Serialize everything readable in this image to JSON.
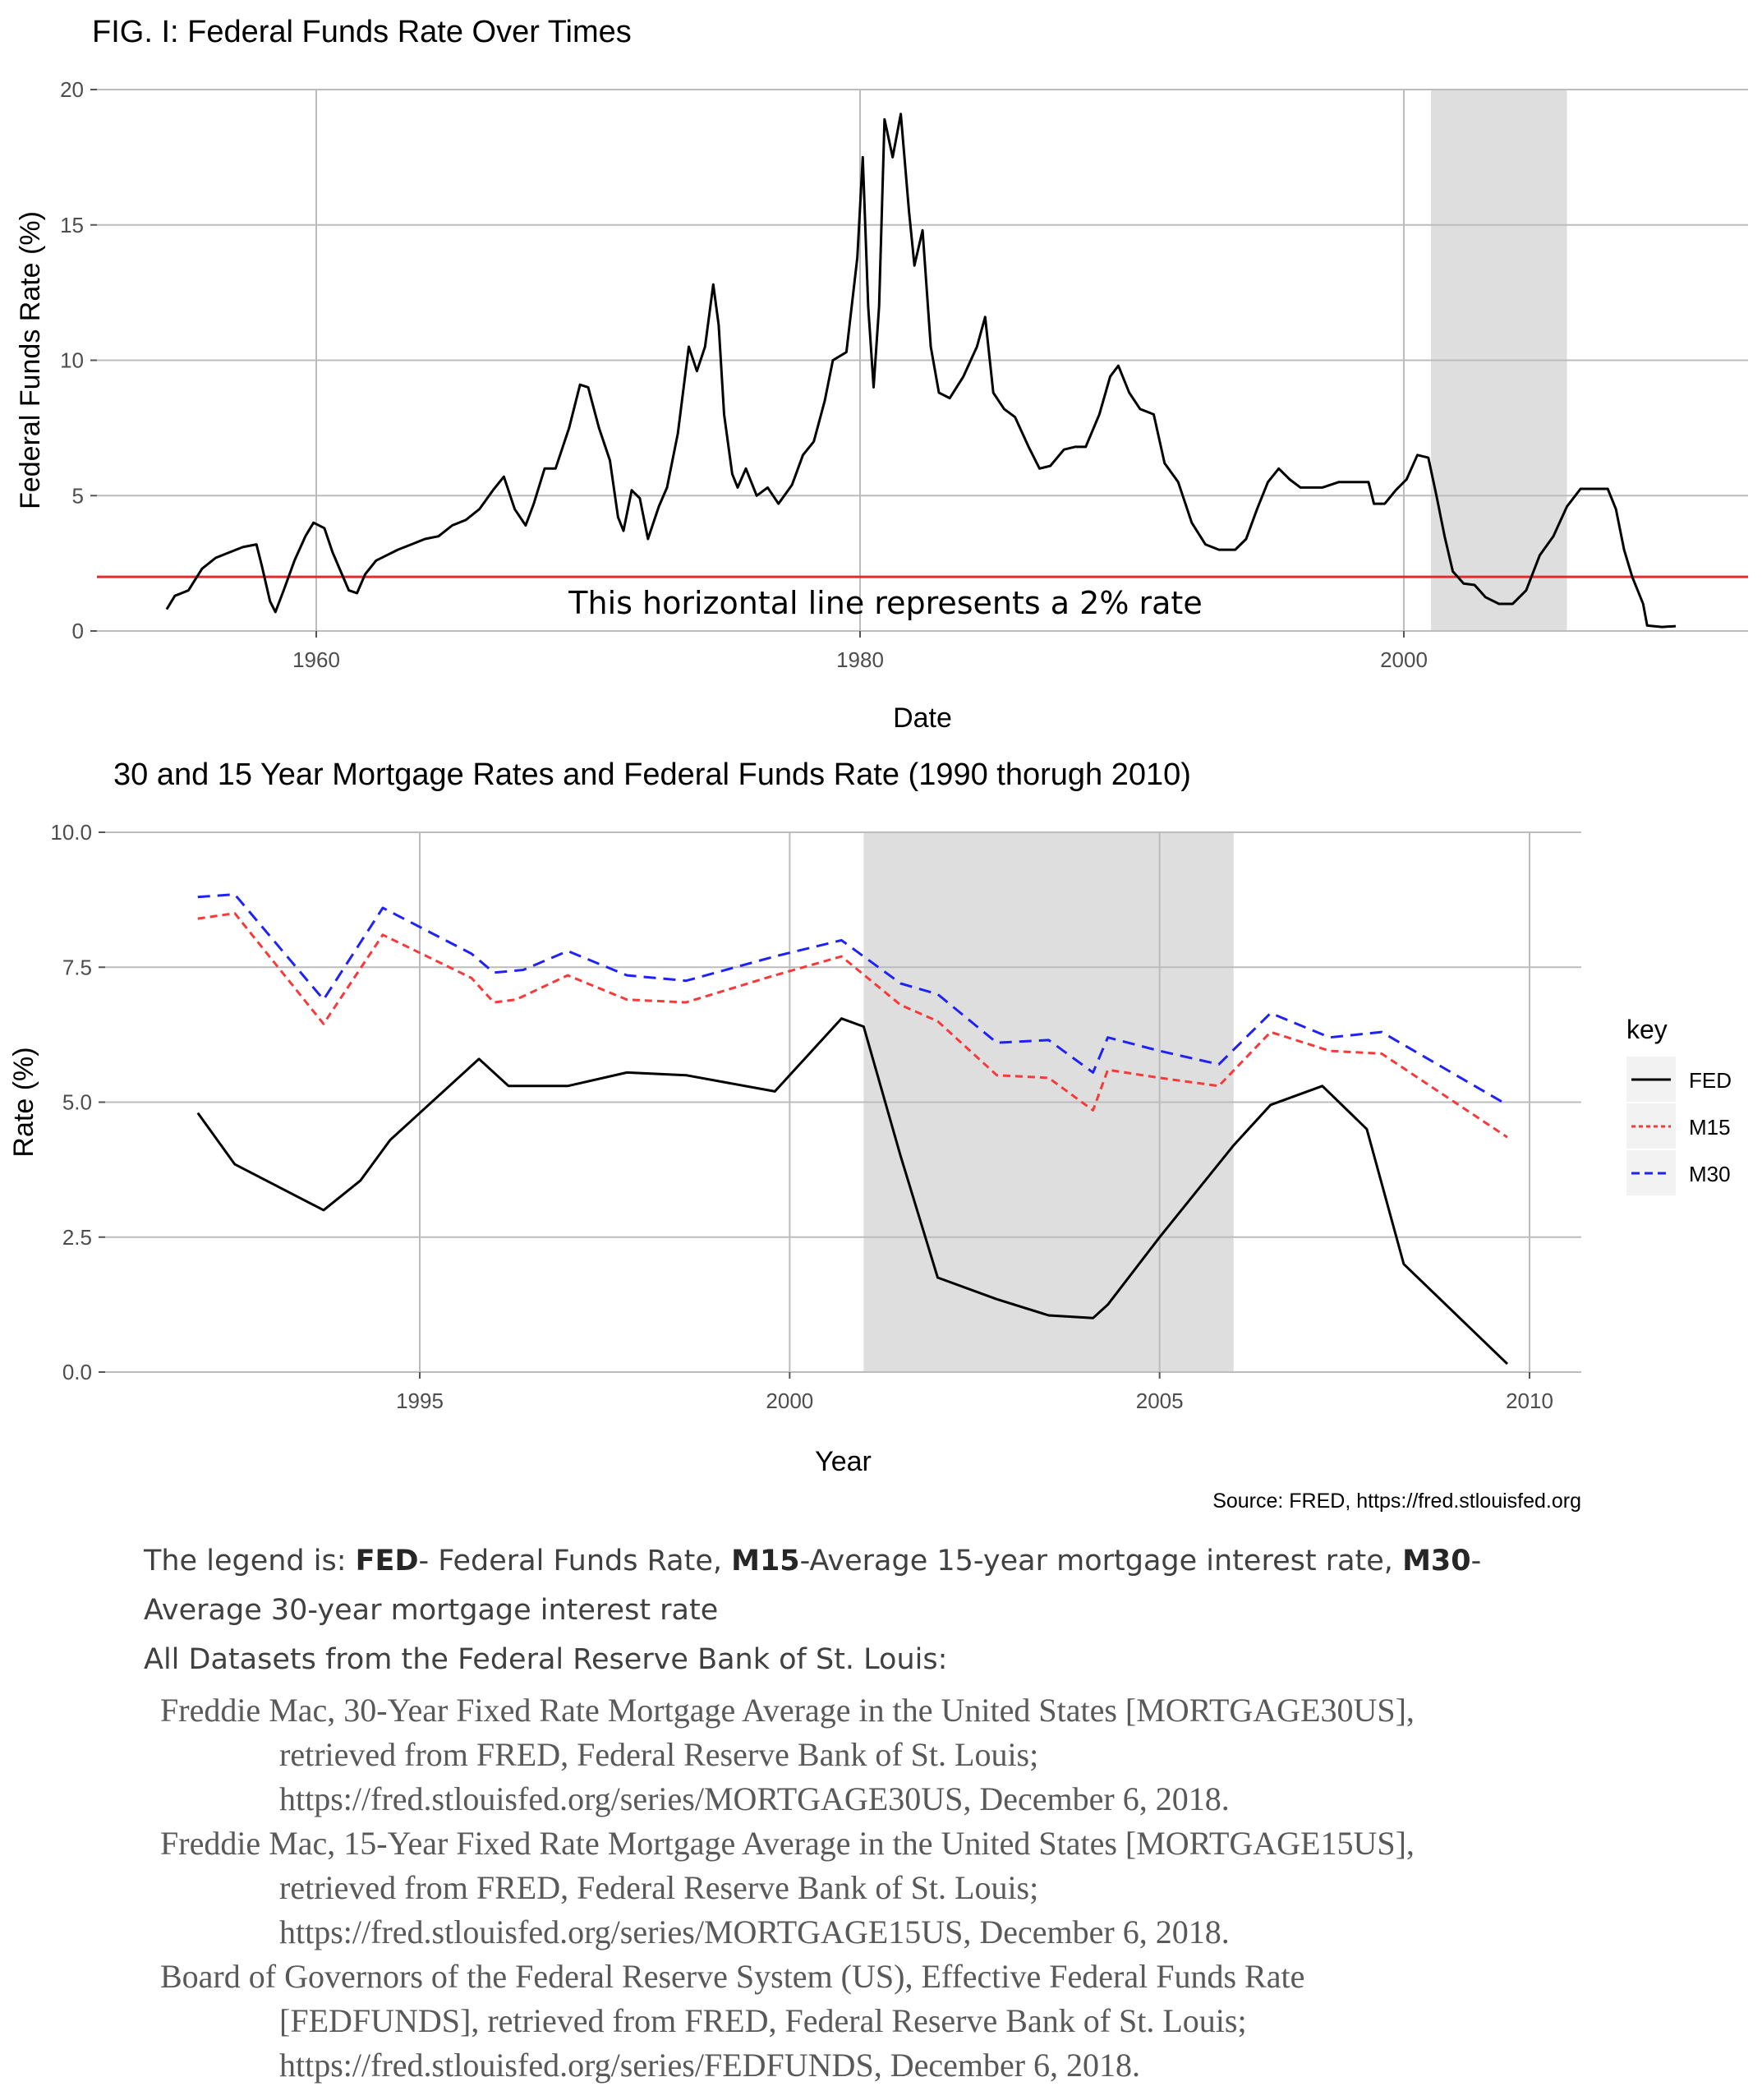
{
  "chart_data": [
    {
      "type": "line",
      "title": "FIG. I: Federal Funds Rate Over Times",
      "xlabel": "Date",
      "ylabel": "Federal Funds Rate (%)",
      "xlim": [
        1950.5,
        2014.5
      ],
      "ylim": [
        0,
        20
      ],
      "x_ticks": [
        1960,
        1980,
        2000
      ],
      "y_ticks": [
        0,
        5,
        10,
        15,
        20
      ],
      "grid": true,
      "shaded_region": [
        2001,
        2006
      ],
      "hline": {
        "y": 2,
        "color": "#e8292b",
        "label": "This horizontal line represents a 2% rate"
      },
      "series": [
        {
          "color": "#000000",
          "points": [
            [
              1954.5,
              0.8
            ],
            [
              1954.8,
              1.3
            ],
            [
              1955.3,
              1.5
            ],
            [
              1955.8,
              2.3
            ],
            [
              1956.3,
              2.7
            ],
            [
              1956.8,
              2.9
            ],
            [
              1957.3,
              3.1
            ],
            [
              1957.8,
              3.2
            ],
            [
              1958.0,
              2.4
            ],
            [
              1958.3,
              1.1
            ],
            [
              1958.5,
              0.7
            ],
            [
              1958.8,
              1.5
            ],
            [
              1959.2,
              2.6
            ],
            [
              1959.6,
              3.5
            ],
            [
              1959.9,
              4.0
            ],
            [
              1960.3,
              3.8
            ],
            [
              1960.6,
              2.9
            ],
            [
              1960.9,
              2.2
            ],
            [
              1961.2,
              1.5
            ],
            [
              1961.5,
              1.4
            ],
            [
              1961.8,
              2.1
            ],
            [
              1962.2,
              2.6
            ],
            [
              1962.6,
              2.8
            ],
            [
              1963.0,
              3.0
            ],
            [
              1963.5,
              3.2
            ],
            [
              1964.0,
              3.4
            ],
            [
              1964.5,
              3.5
            ],
            [
              1965.0,
              3.9
            ],
            [
              1965.5,
              4.1
            ],
            [
              1966.0,
              4.5
            ],
            [
              1966.5,
              5.2
            ],
            [
              1966.9,
              5.7
            ],
            [
              1967.3,
              4.5
            ],
            [
              1967.7,
              3.9
            ],
            [
              1968.0,
              4.7
            ],
            [
              1968.4,
              6.0
            ],
            [
              1968.8,
              6.0
            ],
            [
              1969.3,
              7.5
            ],
            [
              1969.7,
              9.1
            ],
            [
              1970.0,
              9.0
            ],
            [
              1970.4,
              7.5
            ],
            [
              1970.8,
              6.3
            ],
            [
              1971.1,
              4.2
            ],
            [
              1971.3,
              3.7
            ],
            [
              1971.6,
              5.2
            ],
            [
              1971.9,
              4.9
            ],
            [
              1972.2,
              3.4
            ],
            [
              1972.6,
              4.6
            ],
            [
              1972.9,
              5.3
            ],
            [
              1973.3,
              7.3
            ],
            [
              1973.7,
              10.5
            ],
            [
              1974.0,
              9.6
            ],
            [
              1974.3,
              10.5
            ],
            [
              1974.6,
              12.8
            ],
            [
              1974.8,
              11.3
            ],
            [
              1975.0,
              8.0
            ],
            [
              1975.3,
              5.8
            ],
            [
              1975.5,
              5.3
            ],
            [
              1975.8,
              6.0
            ],
            [
              1976.2,
              5.0
            ],
            [
              1976.6,
              5.3
            ],
            [
              1977.0,
              4.7
            ],
            [
              1977.5,
              5.4
            ],
            [
              1977.9,
              6.5
            ],
            [
              1978.3,
              7.0
            ],
            [
              1978.7,
              8.5
            ],
            [
              1979.0,
              10.0
            ],
            [
              1979.5,
              10.3
            ],
            [
              1979.9,
              13.8
            ],
            [
              1980.1,
              17.5
            ],
            [
              1980.3,
              12.0
            ],
            [
              1980.5,
              9.0
            ],
            [
              1980.7,
              12.0
            ],
            [
              1980.9,
              18.9
            ],
            [
              1981.2,
              17.5
            ],
            [
              1981.5,
              19.1
            ],
            [
              1981.8,
              15.5
            ],
            [
              1982.0,
              13.5
            ],
            [
              1982.3,
              14.8
            ],
            [
              1982.6,
              10.5
            ],
            [
              1982.9,
              8.8
            ],
            [
              1983.3,
              8.6
            ],
            [
              1983.8,
              9.4
            ],
            [
              1984.3,
              10.5
            ],
            [
              1984.6,
              11.6
            ],
            [
              1984.9,
              8.8
            ],
            [
              1985.3,
              8.2
            ],
            [
              1985.7,
              7.9
            ],
            [
              1986.2,
              6.8
            ],
            [
              1986.6,
              6.0
            ],
            [
              1987.0,
              6.1
            ],
            [
              1987.5,
              6.7
            ],
            [
              1987.9,
              6.8
            ],
            [
              1988.3,
              6.8
            ],
            [
              1988.8,
              8.0
            ],
            [
              1989.2,
              9.4
            ],
            [
              1989.5,
              9.8
            ],
            [
              1989.9,
              8.8
            ],
            [
              1990.3,
              8.2
            ],
            [
              1990.8,
              8.0
            ],
            [
              1991.2,
              6.2
            ],
            [
              1991.7,
              5.5
            ],
            [
              1992.2,
              4.0
            ],
            [
              1992.7,
              3.2
            ],
            [
              1993.2,
              3.0
            ],
            [
              1993.8,
              3.0
            ],
            [
              1994.2,
              3.4
            ],
            [
              1994.6,
              4.5
            ],
            [
              1995.0,
              5.5
            ],
            [
              1995.4,
              6.0
            ],
            [
              1995.8,
              5.6
            ],
            [
              1996.2,
              5.3
            ],
            [
              1996.6,
              5.3
            ],
            [
              1997.0,
              5.3
            ],
            [
              1997.6,
              5.5
            ],
            [
              1998.2,
              5.5
            ],
            [
              1998.7,
              5.5
            ],
            [
              1998.9,
              4.7
            ],
            [
              1999.3,
              4.7
            ],
            [
              1999.7,
              5.2
            ],
            [
              2000.1,
              5.6
            ],
            [
              2000.5,
              6.5
            ],
            [
              2000.9,
              6.4
            ],
            [
              2001.2,
              5.0
            ],
            [
              2001.5,
              3.5
            ],
            [
              2001.8,
              2.2
            ],
            [
              2002.2,
              1.75
            ],
            [
              2002.6,
              1.7
            ],
            [
              2003.0,
              1.25
            ],
            [
              2003.5,
              1.0
            ],
            [
              2004.0,
              1.0
            ],
            [
              2004.5,
              1.5
            ],
            [
              2005.0,
              2.8
            ],
            [
              2005.5,
              3.5
            ],
            [
              2006.0,
              4.6
            ],
            [
              2006.5,
              5.25
            ],
            [
              2007.0,
              5.25
            ],
            [
              2007.5,
              5.25
            ],
            [
              2007.8,
              4.5
            ],
            [
              2008.1,
              3.0
            ],
            [
              2008.4,
              2.0
            ],
            [
              2008.8,
              1.0
            ],
            [
              2008.95,
              0.2
            ],
            [
              2009.5,
              0.15
            ],
            [
              2010.0,
              0.18
            ]
          ]
        }
      ]
    },
    {
      "type": "line",
      "title": "30 and 15 Year Mortgage Rates and Federal Funds Rate (1990 thorugh 2010)",
      "xlabel": "Year",
      "ylabel": "Rate (%)",
      "xlim": [
        1991,
        2010.5
      ],
      "ylim": [
        0,
        10
      ],
      "x_ticks": [
        1995,
        2000,
        2005,
        2010
      ],
      "y_ticks": [
        "0.0",
        "2.5",
        "5.0",
        "7.5",
        "10.0"
      ],
      "grid": true,
      "shaded_region": [
        2001,
        2006
      ],
      "legend_position": "right",
      "legend_title": "key",
      "source": "Source: FRED, https://fred.stlouisfed.org",
      "series": [
        {
          "name": "FED",
          "color": "#000000",
          "dash": "none",
          "x": [
            1992.0,
            1992.5,
            1993.7,
            1994.2,
            1994.6,
            1995.8,
            1996.2,
            1997.0,
            1997.8,
            1998.6,
            1999.8,
            2000.7,
            2001.0,
            2001.5,
            2002.0,
            2002.8,
            2003.5,
            2004.1,
            2004.3,
            2005.0,
            2006.0,
            2006.5,
            2007.2,
            2007.8,
            2008.3,
            2009.7
          ],
          "y": [
            4.8,
            3.85,
            3.0,
            3.55,
            4.3,
            5.8,
            5.3,
            5.3,
            5.55,
            5.5,
            5.2,
            6.55,
            6.4,
            4.0,
            1.75,
            1.35,
            1.05,
            1.0,
            1.25,
            2.5,
            4.2,
            4.95,
            5.3,
            4.5,
            2.0,
            0.15
          ]
        },
        {
          "name": "M15",
          "color": "#f8393a",
          "dash": "9 6",
          "x": [
            1992.0,
            1992.5,
            1993.7,
            1994.5,
            1995.7,
            1996.0,
            1996.3,
            1997.0,
            1997.8,
            1998.6,
            1999.8,
            2000.7,
            2001.5,
            2002.0,
            2002.8,
            2003.5,
            2004.1,
            2004.3,
            2005.0,
            2005.8,
            2006.5,
            2007.3,
            2008.0,
            2009.7
          ],
          "y": [
            8.4,
            8.5,
            6.45,
            8.1,
            7.3,
            6.85,
            6.9,
            7.35,
            6.9,
            6.85,
            7.35,
            7.7,
            6.8,
            6.5,
            5.5,
            5.45,
            4.85,
            5.6,
            5.45,
            5.3,
            6.3,
            5.95,
            5.9,
            4.35
          ]
        },
        {
          "name": "M30",
          "color": "#1f22f7",
          "dash": "15 9",
          "x": [
            1992.0,
            1992.5,
            1993.7,
            1994.5,
            1995.7,
            1996.0,
            1996.4,
            1997.0,
            1997.8,
            1998.6,
            1999.8,
            2000.7,
            2001.5,
            2002.0,
            2002.8,
            2003.5,
            2004.1,
            2004.3,
            2005.0,
            2005.8,
            2006.5,
            2007.3,
            2008.0,
            2009.7
          ],
          "y": [
            8.8,
            8.85,
            6.9,
            8.6,
            7.75,
            7.4,
            7.45,
            7.8,
            7.35,
            7.25,
            7.7,
            8.0,
            7.2,
            7.0,
            6.1,
            6.15,
            5.55,
            6.2,
            5.95,
            5.7,
            6.65,
            6.2,
            6.3,
            4.95
          ]
        }
      ]
    }
  ],
  "caption": {
    "prefix": "The legend is: ",
    "fed_term": "FED",
    "fed_desc": "- Federal Funds Rate, ",
    "m15_term": "M15",
    "m15_desc": "-Average 15-year mortgage interest rate, ",
    "m30_term": "M30",
    "m30_desc": "-",
    "line2": "Average 30-year mortgage interest rate",
    "line3": "All Datasets from the Federal Reserve Bank of St. Louis:"
  },
  "references": [
    {
      "first": "Freddie Mac, 30-Year Fixed Rate Mortgage Average in the United States [MORTGAGE30US],",
      "cont1": "retrieved from FRED, Federal Reserve Bank of St. Louis;",
      "cont2": "https://fred.stlouisfed.org/series/MORTGAGE30US, December 6, 2018."
    },
    {
      "first": "Freddie Mac, 15-Year Fixed Rate Mortgage Average in the United States [MORTGAGE15US],",
      "cont1": "retrieved from FRED, Federal Reserve Bank of St. Louis;",
      "cont2": "https://fred.stlouisfed.org/series/MORTGAGE15US, December 6, 2018."
    },
    {
      "first": "Board of Governors of the Federal Reserve System (US), Effective Federal Funds Rate",
      "cont1": "[FEDFUNDS], retrieved from FRED, Federal Reserve Bank of St. Louis;",
      "cont2": "https://fred.stlouisfed.org/series/FEDFUNDS, December 6, 2018."
    }
  ]
}
